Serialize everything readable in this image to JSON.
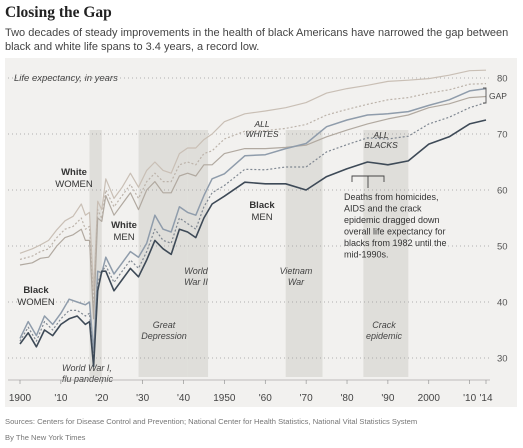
{
  "header": {
    "title": "Closing the Gap",
    "subtitle": "Two decades of steady improvements in the health of black Americans have narrowed the gap between black and white life spans to 3.4 years, a record low."
  },
  "footer": {
    "source": "Sources: Centers for Disease Control and Prevention; National Center for Health Statistics, National Vital Statistics System",
    "credit": "By The New York Times"
  },
  "chart_data": {
    "type": "line",
    "ylabel": "Life expectancy, in years",
    "xlim": [
      1900,
      2014
    ],
    "ylim": [
      28,
      82
    ],
    "x_ticks": [
      1900,
      1910,
      1920,
      1930,
      1940,
      1950,
      1960,
      1970,
      1980,
      1990,
      2000,
      2010,
      2014
    ],
    "x_tick_labels": [
      "1900",
      "'10",
      "'20",
      "'30",
      "'40",
      "1950",
      "'60",
      "'70",
      "'80",
      "'90",
      "2000",
      "'10",
      "'14"
    ],
    "y_ticks": [
      30,
      40,
      50,
      60,
      70,
      80
    ],
    "y_tick_labels": [
      "30",
      "40",
      "50",
      "60",
      "70",
      "80"
    ],
    "gap_label": "GAP",
    "shaded_periods": [
      {
        "label": "World War I, flu pandemic",
        "start": 1917,
        "end": 1919
      },
      {
        "label": "Great Depression",
        "start": 1929,
        "end": 1940
      },
      {
        "label": "World War II",
        "start": 1941,
        "end": 1945
      },
      {
        "label": "Vietnam War",
        "start": 1965,
        "end": 1973
      },
      {
        "label": "Crack epidemic",
        "start": 1984,
        "end": 1994
      }
    ],
    "series": [
      {
        "name": "White WOMEN",
        "color": "#c9bfb5",
        "width": 1.2,
        "dash": "",
        "data": [
          [
            1900,
            48.7
          ],
          [
            1903,
            49.5
          ],
          [
            1905,
            50.2
          ],
          [
            1907,
            51.0
          ],
          [
            1909,
            52.9
          ],
          [
            1911,
            54.5
          ],
          [
            1913,
            55.3
          ],
          [
            1915,
            57.5
          ],
          [
            1916,
            55.5
          ],
          [
            1917,
            56.0
          ],
          [
            1918,
            42.0
          ],
          [
            1919,
            58.0
          ],
          [
            1920,
            56.5
          ],
          [
            1921,
            62.0
          ],
          [
            1923,
            58.5
          ],
          [
            1925,
            60.5
          ],
          [
            1927,
            63.0
          ],
          [
            1929,
            60.5
          ],
          [
            1931,
            63.5
          ],
          [
            1933,
            65.0
          ],
          [
            1935,
            63.5
          ],
          [
            1937,
            63.0
          ],
          [
            1939,
            66.5
          ],
          [
            1941,
            67.5
          ],
          [
            1943,
            67.5
          ],
          [
            1945,
            69.0
          ],
          [
            1947,
            70.0
          ],
          [
            1950,
            72.2
          ],
          [
            1955,
            73.6
          ],
          [
            1960,
            74.1
          ],
          [
            1965,
            74.7
          ],
          [
            1970,
            75.6
          ],
          [
            1975,
            77.3
          ],
          [
            1980,
            78.1
          ],
          [
            1985,
            78.7
          ],
          [
            1990,
            79.4
          ],
          [
            1995,
            79.6
          ],
          [
            2000,
            79.9
          ],
          [
            2005,
            80.5
          ],
          [
            2010,
            81.3
          ],
          [
            2014,
            81.4
          ]
        ]
      },
      {
        "name": "ALL WHITES",
        "color": "#bcb3aa",
        "width": 1.2,
        "dash": "2,2",
        "data": [
          [
            1900,
            47.6
          ],
          [
            1903,
            48.2
          ],
          [
            1905,
            49.0
          ],
          [
            1907,
            49.5
          ],
          [
            1909,
            51.5
          ],
          [
            1911,
            53.0
          ],
          [
            1913,
            53.5
          ],
          [
            1915,
            55.0
          ],
          [
            1916,
            53.0
          ],
          [
            1917,
            53.5
          ],
          [
            1918,
            39.0
          ],
          [
            1919,
            56.5
          ],
          [
            1920,
            54.9
          ],
          [
            1921,
            60.0
          ],
          [
            1923,
            57.0
          ],
          [
            1925,
            59.0
          ],
          [
            1927,
            61.0
          ],
          [
            1929,
            58.5
          ],
          [
            1931,
            61.5
          ],
          [
            1933,
            63.0
          ],
          [
            1935,
            61.5
          ],
          [
            1937,
            61.5
          ],
          [
            1939,
            64.5
          ],
          [
            1941,
            65.0
          ],
          [
            1943,
            64.5
          ],
          [
            1945,
            66.5
          ],
          [
            1947,
            67.0
          ],
          [
            1950,
            69.1
          ],
          [
            1955,
            70.5
          ],
          [
            1960,
            70.6
          ],
          [
            1965,
            71.0
          ],
          [
            1970,
            71.7
          ],
          [
            1975,
            73.4
          ],
          [
            1980,
            74.4
          ],
          [
            1985,
            75.3
          ],
          [
            1990,
            76.1
          ],
          [
            1995,
            76.5
          ],
          [
            2000,
            77.3
          ],
          [
            2005,
            77.9
          ],
          [
            2010,
            78.9
          ],
          [
            2014,
            79.0
          ]
        ]
      },
      {
        "name": "White MEN",
        "color": "#b1a9a0",
        "width": 1.2,
        "dash": "",
        "data": [
          [
            1900,
            46.6
          ],
          [
            1903,
            47.0
          ],
          [
            1905,
            47.8
          ],
          [
            1907,
            48.0
          ],
          [
            1909,
            50.0
          ],
          [
            1911,
            51.5
          ],
          [
            1913,
            52.0
          ],
          [
            1915,
            53.0
          ],
          [
            1916,
            51.0
          ],
          [
            1917,
            51.0
          ],
          [
            1918,
            37.0
          ],
          [
            1919,
            55.0
          ],
          [
            1920,
            54.4
          ],
          [
            1921,
            59.0
          ],
          [
            1923,
            55.5
          ],
          [
            1925,
            57.5
          ],
          [
            1927,
            59.5
          ],
          [
            1929,
            56.5
          ],
          [
            1931,
            60.0
          ],
          [
            1933,
            61.5
          ],
          [
            1935,
            59.5
          ],
          [
            1937,
            59.5
          ],
          [
            1939,
            62.5
          ],
          [
            1941,
            63.0
          ],
          [
            1943,
            62.5
          ],
          [
            1945,
            64.5
          ],
          [
            1947,
            64.5
          ],
          [
            1950,
            66.5
          ],
          [
            1955,
            67.4
          ],
          [
            1960,
            67.4
          ],
          [
            1965,
            67.6
          ],
          [
            1970,
            68.0
          ],
          [
            1975,
            69.5
          ],
          [
            1980,
            70.7
          ],
          [
            1985,
            71.8
          ],
          [
            1990,
            72.7
          ],
          [
            1995,
            73.4
          ],
          [
            2000,
            74.7
          ],
          [
            2005,
            75.4
          ],
          [
            2010,
            76.5
          ],
          [
            2014,
            76.7
          ]
        ]
      },
      {
        "name": "Black WOMEN",
        "color": "#8f9cab",
        "width": 1.5,
        "dash": "",
        "data": [
          [
            1900,
            33.5
          ],
          [
            1902,
            36.5
          ],
          [
            1904,
            34.0
          ],
          [
            1906,
            37.5
          ],
          [
            1908,
            36.0
          ],
          [
            1910,
            38.0
          ],
          [
            1912,
            40.5
          ],
          [
            1914,
            40.0
          ],
          [
            1916,
            39.5
          ],
          [
            1917,
            40.0
          ],
          [
            1918,
            31.0
          ],
          [
            1919,
            45.5
          ],
          [
            1920,
            45.2
          ],
          [
            1921,
            48.0
          ],
          [
            1923,
            45.0
          ],
          [
            1925,
            47.0
          ],
          [
            1927,
            49.0
          ],
          [
            1929,
            48.0
          ],
          [
            1931,
            50.5
          ],
          [
            1933,
            55.5
          ],
          [
            1935,
            53.0
          ],
          [
            1937,
            52.5
          ],
          [
            1939,
            57.0
          ],
          [
            1941,
            56.0
          ],
          [
            1943,
            55.5
          ],
          [
            1945,
            59.0
          ],
          [
            1947,
            62.0
          ],
          [
            1950,
            62.9
          ],
          [
            1955,
            66.1
          ],
          [
            1960,
            66.3
          ],
          [
            1965,
            67.4
          ],
          [
            1970,
            68.3
          ],
          [
            1975,
            71.3
          ],
          [
            1980,
            72.5
          ],
          [
            1985,
            73.4
          ],
          [
            1990,
            73.6
          ],
          [
            1995,
            74.0
          ],
          [
            2000,
            75.1
          ],
          [
            2005,
            76.1
          ],
          [
            2010,
            77.7
          ],
          [
            2014,
            78.1
          ]
        ]
      },
      {
        "name": "ALL BLACKS",
        "color": "#7f8791",
        "width": 1.2,
        "dash": "2,2",
        "data": [
          [
            1900,
            33.0
          ],
          [
            1902,
            35.5
          ],
          [
            1904,
            33.0
          ],
          [
            1906,
            36.5
          ],
          [
            1908,
            35.0
          ],
          [
            1910,
            37.0
          ],
          [
            1912,
            38.5
          ],
          [
            1914,
            38.5
          ],
          [
            1916,
            37.5
          ],
          [
            1917,
            38.0
          ],
          [
            1918,
            29.0
          ],
          [
            1919,
            43.5
          ],
          [
            1920,
            45.3
          ],
          [
            1921,
            46.5
          ],
          [
            1923,
            43.5
          ],
          [
            1925,
            45.5
          ],
          [
            1927,
            47.5
          ],
          [
            1929,
            46.0
          ],
          [
            1931,
            49.0
          ],
          [
            1933,
            53.0
          ],
          [
            1935,
            51.0
          ],
          [
            1937,
            50.5
          ],
          [
            1939,
            55.0
          ],
          [
            1941,
            54.0
          ],
          [
            1943,
            53.0
          ],
          [
            1945,
            57.0
          ],
          [
            1947,
            59.5
          ],
          [
            1950,
            60.8
          ],
          [
            1955,
            63.7
          ],
          [
            1960,
            63.6
          ],
          [
            1965,
            64.1
          ],
          [
            1970,
            64.1
          ],
          [
            1975,
            66.8
          ],
          [
            1980,
            68.1
          ],
          [
            1985,
            69.3
          ],
          [
            1990,
            69.1
          ],
          [
            1995,
            69.6
          ],
          [
            2000,
            71.8
          ],
          [
            2005,
            73.0
          ],
          [
            2010,
            74.7
          ],
          [
            2014,
            75.6
          ]
        ]
      },
      {
        "name": "Black MEN",
        "color": "#3e4a57",
        "width": 1.6,
        "dash": "",
        "data": [
          [
            1900,
            32.5
          ],
          [
            1902,
            34.5
          ],
          [
            1904,
            32.0
          ],
          [
            1906,
            35.0
          ],
          [
            1908,
            34.0
          ],
          [
            1910,
            36.0
          ],
          [
            1912,
            37.0
          ],
          [
            1914,
            37.5
          ],
          [
            1916,
            36.0
          ],
          [
            1917,
            36.5
          ],
          [
            1918,
            28.5
          ],
          [
            1919,
            42.0
          ],
          [
            1920,
            45.5
          ],
          [
            1921,
            45.5
          ],
          [
            1923,
            42.0
          ],
          [
            1925,
            44.0
          ],
          [
            1927,
            46.0
          ],
          [
            1929,
            44.5
          ],
          [
            1931,
            47.5
          ],
          [
            1933,
            51.0
          ],
          [
            1935,
            49.5
          ],
          [
            1937,
            48.5
          ],
          [
            1939,
            53.0
          ],
          [
            1941,
            52.5
          ],
          [
            1943,
            51.5
          ],
          [
            1945,
            55.0
          ],
          [
            1947,
            57.5
          ],
          [
            1950,
            58.9
          ],
          [
            1955,
            61.4
          ],
          [
            1960,
            61.1
          ],
          [
            1965,
            61.1
          ],
          [
            1970,
            60.0
          ],
          [
            1975,
            62.4
          ],
          [
            1980,
            63.8
          ],
          [
            1985,
            65.0
          ],
          [
            1990,
            64.5
          ],
          [
            1995,
            65.2
          ],
          [
            2000,
            68.2
          ],
          [
            2005,
            69.5
          ],
          [
            2010,
            71.8
          ],
          [
            2014,
            72.5
          ]
        ]
      }
    ],
    "annotations": [
      {
        "id": "white-women",
        "text": [
          "White",
          "WOMEN"
        ],
        "bold_first": true
      },
      {
        "id": "white-men",
        "text": [
          "White",
          "MEN"
        ],
        "bold_first": true
      },
      {
        "id": "black-women",
        "text": [
          "Black",
          "WOMEN"
        ],
        "bold_first": true
      },
      {
        "id": "black-men",
        "text": [
          "Black",
          "MEN"
        ],
        "bold_first": true
      },
      {
        "id": "all-whites",
        "text": [
          "ALL",
          "WHITES"
        ],
        "italic": true
      },
      {
        "id": "all-blacks",
        "text": [
          "ALL",
          "BLACKS"
        ],
        "italic": true
      },
      {
        "id": "crack-note",
        "text": [
          "Deaths from homicides,",
          "AIDS and the crack",
          "epidemic dragged down",
          "overall life expectancy for",
          "blacks from 1982 until the",
          "mid-1990s."
        ]
      }
    ]
  }
}
